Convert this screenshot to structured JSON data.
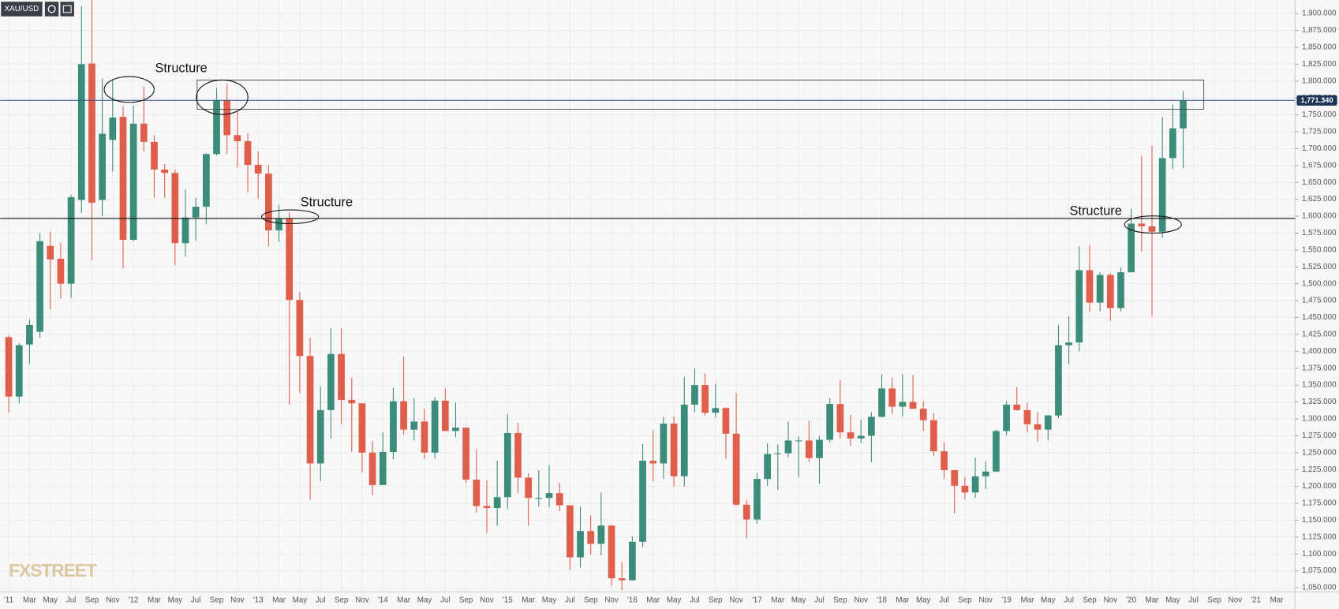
{
  "chart_data": {
    "type": "candlestick",
    "symbol": "XAU/USD",
    "logo": "FXSTREET",
    "annotations": [
      "Structure",
      "Structure",
      "Structure"
    ],
    "last_price_label": "1,771.340",
    "up_color": "#3b8d7a",
    "down_color": "#e05e4c",
    "grid": true,
    "categories": [
      "'11",
      null,
      "Mar",
      null,
      "May",
      null,
      "Jul",
      null,
      "Sep",
      null,
      "Nov",
      null,
      "'12",
      null,
      "Mar",
      null,
      "May",
      null,
      "Jul",
      null,
      "Sep",
      null,
      "Nov",
      null,
      "'13",
      null,
      "Mar",
      null,
      "May",
      null,
      "Jul",
      null,
      "Sep",
      null,
      "Nov",
      null,
      "'14",
      null,
      "Mar",
      null,
      "May",
      null,
      "Jul",
      null,
      "Sep",
      null,
      "Nov",
      null,
      "'15",
      null,
      "Mar",
      null,
      "May",
      null,
      "Jul",
      null,
      "Sep",
      null,
      "Nov",
      null,
      "'16",
      null,
      "Mar",
      null,
      "May",
      null,
      "Jul",
      null,
      "Sep",
      null,
      "Nov",
      null,
      "'17",
      null,
      "Mar",
      null,
      "May",
      null,
      "Jul",
      null,
      "Sep",
      null,
      "Nov",
      null,
      "'18",
      null,
      "Mar",
      null,
      "May",
      null,
      "Jul",
      null,
      "Sep",
      null,
      "Nov",
      null,
      "'19",
      null,
      "Mar",
      null,
      "May",
      null,
      "Jul",
      null,
      "Sep",
      null,
      "Nov",
      null,
      "'20",
      null,
      "Mar",
      null,
      "May",
      null,
      "Jul",
      null,
      "Sep",
      null,
      "Nov",
      null,
      "'21",
      null,
      "Mar"
    ],
    "open": [
      1421,
      1333,
      1410,
      1429,
      1556,
      1537,
      1500,
      1624,
      1826,
      1624,
      1713,
      1747,
      1565,
      1737,
      1710,
      1669,
      1664,
      1560,
      1598,
      1614,
      1692,
      1772,
      1720,
      1711,
      1676,
      1663,
      1579,
      1597,
      1476,
      1393,
      1234,
      1313,
      1396,
      1328,
      1323,
      1250,
      1202,
      1251,
      1326,
      1284,
      1296,
      1250,
      1327,
      1282,
      1287,
      1210,
      1171,
      1168,
      1184,
      1279,
      1213,
      1183,
      1183,
      1190,
      1172,
      1095,
      1134,
      1115,
      1142,
      1064,
      1061,
      1118,
      1238,
      1234,
      1293,
      1215,
      1321,
      1350,
      1309,
      1316,
      1278,
      1173,
      1151,
      1211,
      1248,
      1249,
      1268,
      1268,
      1242,
      1269,
      1322,
      1280,
      1271,
      1275,
      1303,
      1345,
      1318,
      1325,
      1315,
      1298,
      1252,
      1224,
      1201,
      1191,
      1215,
      1222,
      1282,
      1321,
      1313,
      1292,
      1284,
      1305,
      1409,
      1413,
      1520,
      1472,
      1513,
      1464,
      1517,
      1589,
      1585,
      1577,
      1686,
      1730,
      null,
      null,
      null,
      null,
      null,
      null,
      null,
      null,
      null
    ],
    "high": [
      1424,
      1412,
      1447,
      1575,
      1577,
      1561,
      1632,
      1911,
      1921,
      1804,
      1803,
      1763,
      1764,
      1792,
      1720,
      1677,
      1669,
      1640,
      1627,
      1693,
      1790,
      1796,
      1755,
      1723,
      1696,
      1676,
      1617,
      1605,
      1488,
      1420,
      1348,
      1434,
      1434,
      1361,
      1323,
      1267,
      1280,
      1346,
      1392,
      1331,
      1315,
      1332,
      1345,
      1324,
      1287,
      1255,
      1209,
      1238,
      1307,
      1294,
      1219,
      1224,
      1232,
      1205,
      1172,
      1170,
      1157,
      1191,
      1143,
      1088,
      1126,
      1263,
      1283,
      1303,
      1304,
      1362,
      1375,
      1367,
      1352,
      1317,
      1338,
      1180,
      1220,
      1264,
      1262,
      1296,
      1274,
      1297,
      1275,
      1331,
      1357,
      1306,
      1299,
      1310,
      1366,
      1361,
      1366,
      1365,
      1326,
      1309,
      1265,
      1224,
      1214,
      1243,
      1237,
      1284,
      1326,
      1347,
      1324,
      1310,
      1306,
      1439,
      1452,
      1555,
      1557,
      1517,
      1516,
      1524,
      1611,
      1689,
      1704,
      1747,
      1765,
      1785,
      null,
      null,
      null,
      null,
      null,
      null,
      null,
      null,
      null
    ],
    "low": [
      1309,
      1323,
      1381,
      1420,
      1462,
      1478,
      1479,
      1605,
      1535,
      1600,
      1666,
      1523,
      1563,
      1696,
      1627,
      1627,
      1527,
      1540,
      1564,
      1588,
      1690,
      1692,
      1672,
      1635,
      1626,
      1555,
      1562,
      1321,
      1338,
      1180,
      1208,
      1271,
      1292,
      1251,
      1221,
      1187,
      1202,
      1240,
      1277,
      1268,
      1241,
      1241,
      1282,
      1273,
      1205,
      1161,
      1131,
      1142,
      1167,
      1190,
      1142,
      1170,
      1169,
      1163,
      1077,
      1080,
      1099,
      1098,
      1053,
      1046,
      1061,
      1110,
      1208,
      1211,
      1200,
      1200,
      1310,
      1305,
      1302,
      1241,
      1171,
      1123,
      1145,
      1201,
      1195,
      1243,
      1214,
      1236,
      1204,
      1265,
      1271,
      1260,
      1264,
      1236,
      1302,
      1307,
      1303,
      1315,
      1282,
      1245,
      1211,
      1160,
      1180,
      1183,
      1196,
      1221,
      1276,
      1312,
      1280,
      1266,
      1268,
      1301,
      1381,
      1400,
      1459,
      1459,
      1445,
      1459,
      1517,
      1548,
      1451,
      1568,
      1670,
      1671,
      null,
      null,
      null,
      null,
      null,
      null,
      null,
      null,
      null
    ],
    "close": [
      1333,
      1409,
      1439,
      1563,
      1536,
      1500,
      1628,
      1825,
      1620,
      1722,
      1746,
      1565,
      1737,
      1710,
      1669,
      1664,
      1560,
      1598,
      1614,
      1692,
      1772,
      1720,
      1711,
      1676,
      1663,
      1579,
      1597,
      1476,
      1393,
      1234,
      1313,
      1396,
      1328,
      1323,
      1250,
      1202,
      1251,
      1326,
      1284,
      1296,
      1250,
      1327,
      1282,
      1287,
      1210,
      1171,
      1168,
      1184,
      1279,
      1213,
      1183,
      1183,
      1190,
      1172,
      1095,
      1134,
      1115,
      1142,
      1064,
      1061,
      1118,
      1238,
      1234,
      1293,
      1215,
      1321,
      1350,
      1309,
      1316,
      1278,
      1173,
      1151,
      1211,
      1248,
      1249,
      1268,
      1268,
      1242,
      1269,
      1322,
      1280,
      1271,
      1275,
      1303,
      1345,
      1318,
      1325,
      1315,
      1298,
      1252,
      1224,
      1201,
      1191,
      1215,
      1222,
      1282,
      1321,
      1313,
      1292,
      1284,
      1305,
      1409,
      1413,
      1520,
      1472,
      1513,
      1464,
      1517,
      1589,
      1585,
      1577,
      1686,
      1730,
      1771.34,
      null,
      null,
      null,
      null,
      null,
      null,
      null,
      null,
      null
    ],
    "ylim": [
      1044,
      1920
    ],
    "yticks": [
      {
        "value": 1050,
        "label": "1,050.000"
      },
      {
        "value": 1075,
        "label": "1,075.000"
      },
      {
        "value": 1100,
        "label": "1,100.000"
      },
      {
        "value": 1125,
        "label": "1,125.000"
      },
      {
        "value": 1150,
        "label": "1,150.000"
      },
      {
        "value": 1175,
        "label": "1,175.000"
      },
      {
        "value": 1200,
        "label": "1,200.000"
      },
      {
        "value": 1225,
        "label": "1,225.000"
      },
      {
        "value": 1250,
        "label": "1,250.000"
      },
      {
        "value": 1275,
        "label": "1,275.000"
      },
      {
        "value": 1300,
        "label": "1,300.000"
      },
      {
        "value": 1325,
        "label": "1,325.000"
      },
      {
        "value": 1350,
        "label": "1,350.000"
      },
      {
        "value": 1375,
        "label": "1,375.000"
      },
      {
        "value": 1400,
        "label": "1,400.000"
      },
      {
        "value": 1425,
        "label": "1,425.000"
      },
      {
        "value": 1450,
        "label": "1,450.000"
      },
      {
        "value": 1475,
        "label": "1,475.000"
      },
      {
        "value": 1500,
        "label": "1,500.000"
      },
      {
        "value": 1525,
        "label": "1,525.000"
      },
      {
        "value": 1550,
        "label": "1,550.000"
      },
      {
        "value": 1575,
        "label": "1,575.000"
      },
      {
        "value": 1600,
        "label": "1,600.000"
      },
      {
        "value": 1625,
        "label": "1,625.000"
      },
      {
        "value": 1650,
        "label": "1,650.000"
      },
      {
        "value": 1675,
        "label": "1,675.000"
      },
      {
        "value": 1700,
        "label": "1,700.000"
      },
      {
        "value": 1725,
        "label": "1,725.000"
      },
      {
        "value": 1750,
        "label": "1,750.000"
      },
      {
        "value": 1775,
        "label": "1,775.000"
      },
      {
        "value": 1800,
        "label": "1,800.000"
      },
      {
        "value": 1825,
        "label": "1,825.000"
      },
      {
        "value": 1850,
        "label": "1,850.000"
      },
      {
        "value": 1875,
        "label": "1,875.000"
      },
      {
        "value": 1900,
        "label": "1,900.000"
      }
    ]
  }
}
